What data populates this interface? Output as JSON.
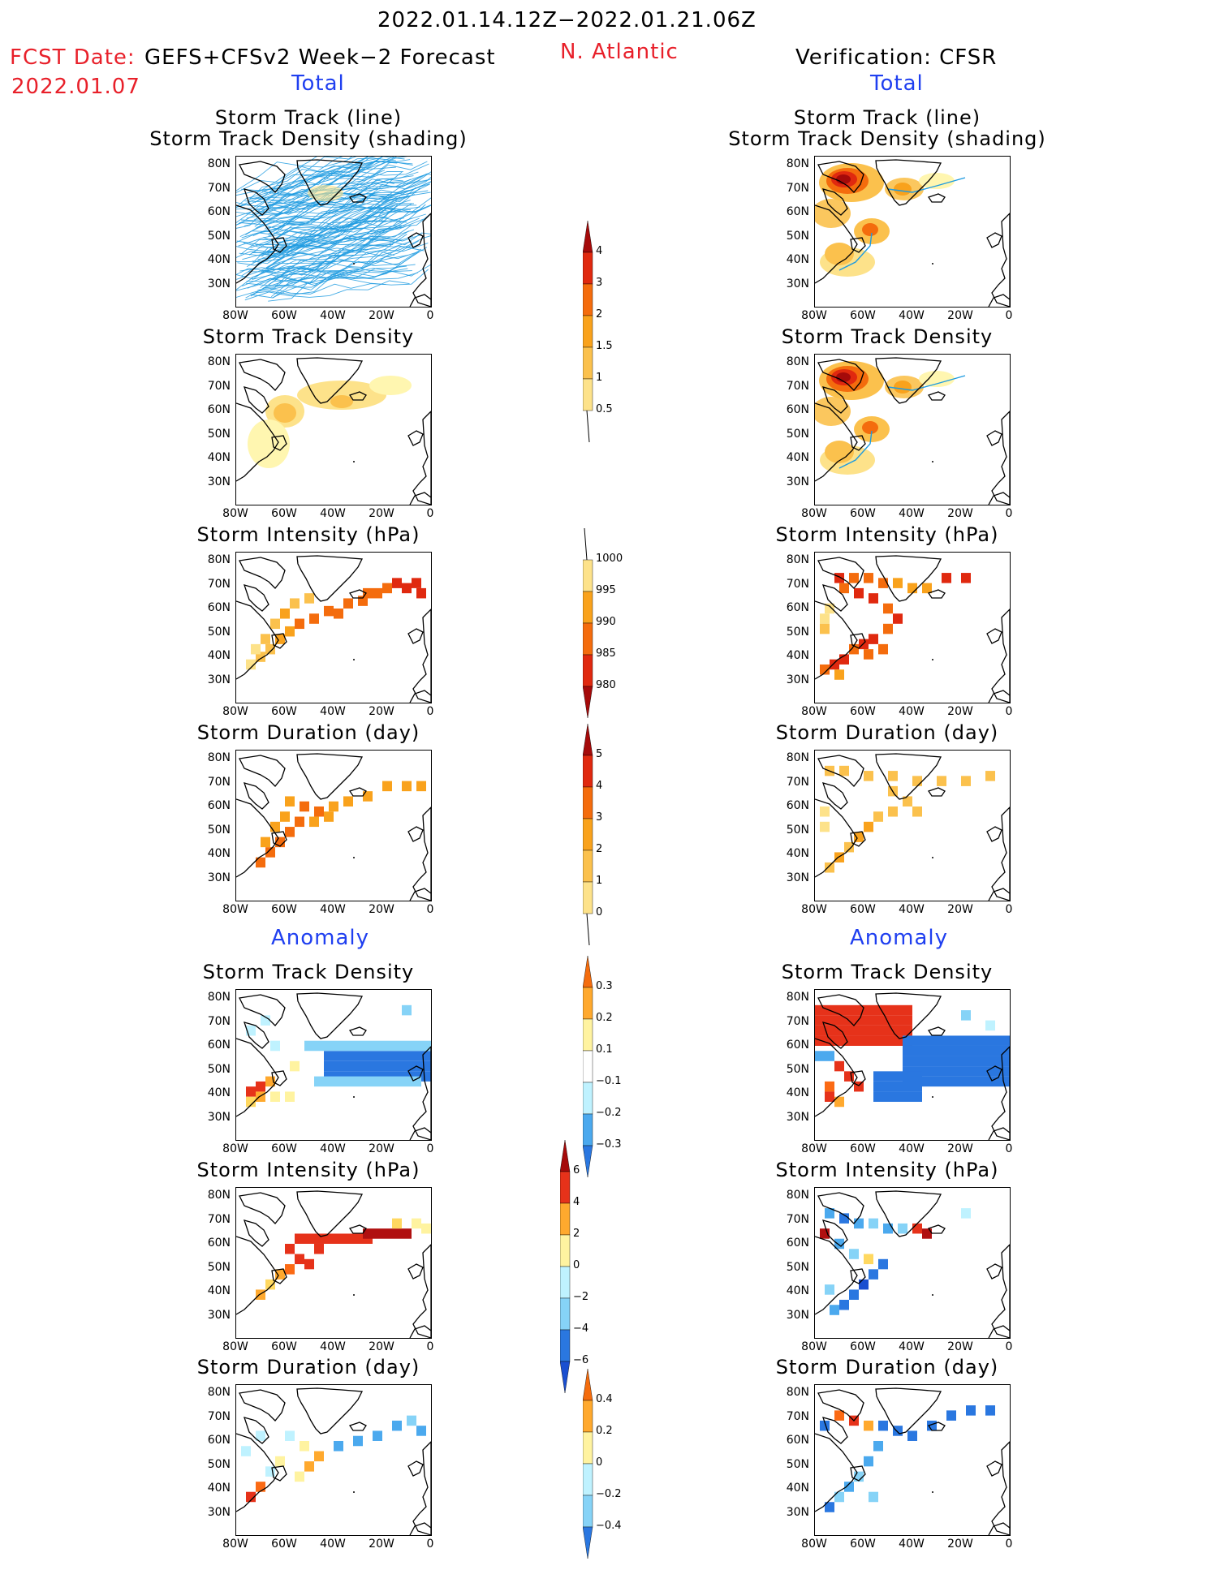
{
  "header": {
    "date_range": "2022.01.14.12Z−2022.01.21.06Z",
    "fcst_label": "FCST Date:",
    "forecast_name": "GEFS+CFSv2 Week−2 Forecast",
    "fcst_date": "2022.01.07",
    "region": "N. Atlantic",
    "verification": "Verification: CFSR",
    "left_total": "Total",
    "right_total": "Total",
    "left_anomaly": "Anomaly",
    "right_anomaly": "Anomaly"
  },
  "panel_titles": {
    "track_line": "Storm Track (line)",
    "track_shading": "Storm Track Density (shading)",
    "density": "Storm Track Density",
    "intensity": "Storm Intensity (hPa)",
    "duration": "Storm Duration (day)"
  },
  "axes": {
    "lat_ticks": [
      "80N",
      "70N",
      "60N",
      "50N",
      "40N",
      "30N"
    ],
    "lon_ticks": [
      "80W",
      "60W",
      "40W",
      "20W",
      "0"
    ]
  },
  "colorbars": {
    "density_total": [
      "4",
      "3",
      "2",
      "1.5",
      "1",
      "0.5"
    ],
    "intensity_total": [
      "1000",
      "995",
      "990",
      "985",
      "980"
    ],
    "duration_total": [
      "5",
      "4",
      "3",
      "2",
      "1",
      "0"
    ],
    "density_anom": [
      "0.3",
      "0.2",
      "0.1",
      "−0.1",
      "−0.2",
      "−0.3"
    ],
    "intensity_anom": [
      "6",
      "4",
      "2",
      "0",
      "−2",
      "−4",
      "−6"
    ],
    "duration_anom": [
      "0.4",
      "0.2",
      "0",
      "−0.2",
      "−0.4"
    ]
  },
  "colors": {
    "title_red": "#e8202a",
    "title_blue": "#1f3ff0",
    "track_line": "#1e9be0"
  }
}
